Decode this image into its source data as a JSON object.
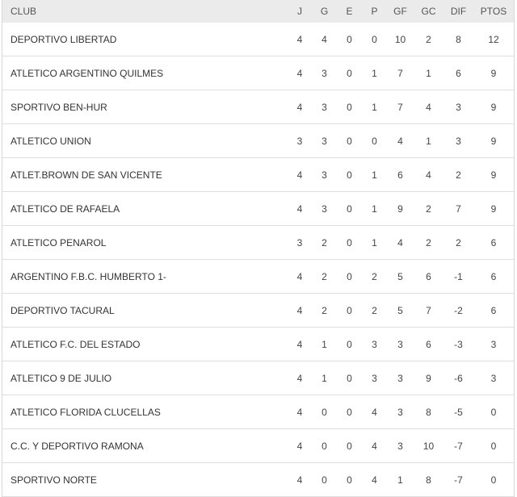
{
  "headers": [
    "CLUB",
    "J",
    "G",
    "E",
    "P",
    "GF",
    "GC",
    "DIF",
    "PTOS"
  ],
  "rows": [
    [
      "DEPORTIVO LIBERTAD",
      "4",
      "4",
      "0",
      "0",
      "10",
      "2",
      "8",
      "12"
    ],
    [
      "ATLETICO ARGENTINO QUILMES",
      "4",
      "3",
      "0",
      "1",
      "7",
      "1",
      "6",
      "9"
    ],
    [
      "SPORTIVO BEN-HUR",
      "4",
      "3",
      "0",
      "1",
      "7",
      "4",
      "3",
      "9"
    ],
    [
      "ATLETICO UNION",
      "3",
      "3",
      "0",
      "0",
      "4",
      "1",
      "3",
      "9"
    ],
    [
      "ATLET.BROWN DE SAN VICENTE",
      "4",
      "3",
      "0",
      "1",
      "6",
      "4",
      "2",
      "9"
    ],
    [
      "ATLETICO DE RAFAELA",
      "4",
      "3",
      "0",
      "1",
      "9",
      "2",
      "7",
      "9"
    ],
    [
      "ATLETICO PENAROL",
      "3",
      "2",
      "0",
      "1",
      "4",
      "2",
      "2",
      "6"
    ],
    [
      "ARGENTINO F.B.C. HUMBERTO 1-",
      "4",
      "2",
      "0",
      "2",
      "5",
      "6",
      "-1",
      "6"
    ],
    [
      "DEPORTIVO TACURAL",
      "4",
      "2",
      "0",
      "2",
      "5",
      "7",
      "-2",
      "6"
    ],
    [
      "ATLETICO F.C. DEL ESTADO",
      "4",
      "1",
      "0",
      "3",
      "3",
      "6",
      "-3",
      "3"
    ],
    [
      "ATLETICO 9 DE JULIO",
      "4",
      "1",
      "0",
      "3",
      "3",
      "9",
      "-6",
      "3"
    ],
    [
      "ATLETICO FLORIDA CLUCELLAS",
      "4",
      "0",
      "0",
      "4",
      "3",
      "8",
      "-5",
      "0"
    ],
    [
      "C.C. Y DEPORTIVO RAMONA",
      "4",
      "0",
      "0",
      "4",
      "3",
      "10",
      "-7",
      "0"
    ],
    [
      "SPORTIVO NORTE",
      "4",
      "0",
      "0",
      "4",
      "1",
      "8",
      "-7",
      "0"
    ]
  ]
}
